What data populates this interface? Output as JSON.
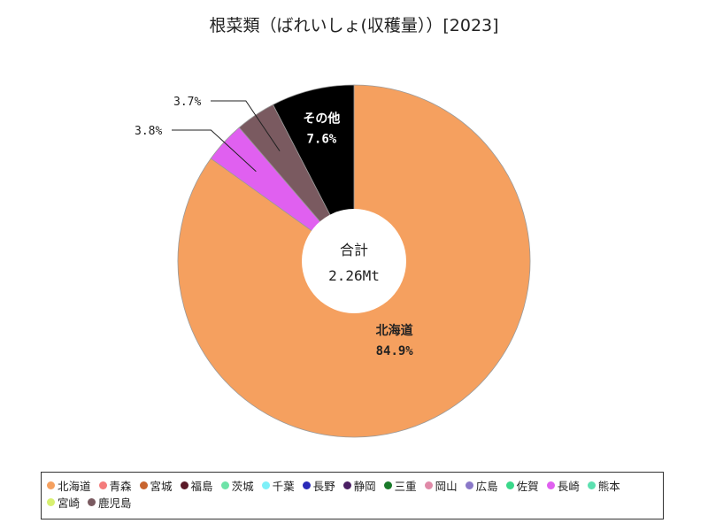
{
  "chart_data": {
    "type": "pie",
    "title": "根菜類（ばれいしょ(収穫量））[2023]",
    "center_label": "合計",
    "center_value": "2.26Mt",
    "categories": [
      "北海道",
      "青森",
      "宮城",
      "福島",
      "茨城",
      "千葉",
      "長野",
      "静岡",
      "三重",
      "岡山",
      "広島",
      "佐賀",
      "長崎",
      "熊本",
      "宮崎",
      "鹿児島",
      "その他"
    ],
    "values": [
      84.9,
      0,
      0,
      0,
      0,
      0,
      0,
      0,
      0,
      0,
      0,
      0,
      3.8,
      0,
      0,
      3.7,
      7.6
    ],
    "colors": [
      "#f5a05f",
      "#f47c7c",
      "#c8652f",
      "#5a1a28",
      "#6ee3a8",
      "#7ef0f8",
      "#2a2ab8",
      "#4a1f63",
      "#1a7a2a",
      "#e08aa8",
      "#8a78c8",
      "#3ad88a",
      "#e060f0",
      "#5ce0b0",
      "#d8f070",
      "#7a5a60",
      "#000000"
    ],
    "slice_labels": [
      {
        "name": "北海道",
        "pct": "84.9%"
      },
      {
        "name": "",
        "pct": "3.8%"
      },
      {
        "name": "",
        "pct": "3.7%"
      },
      {
        "name": "その他",
        "pct": "7.6%"
      }
    ],
    "legend": [
      "北海道",
      "青森",
      "宮城",
      "福島",
      "茨城",
      "千葉",
      "長野",
      "静岡",
      "三重",
      "岡山",
      "広島",
      "佐賀",
      "長崎",
      "熊本",
      "宮崎",
      "鹿児島"
    ],
    "legend_position": "bottom"
  }
}
